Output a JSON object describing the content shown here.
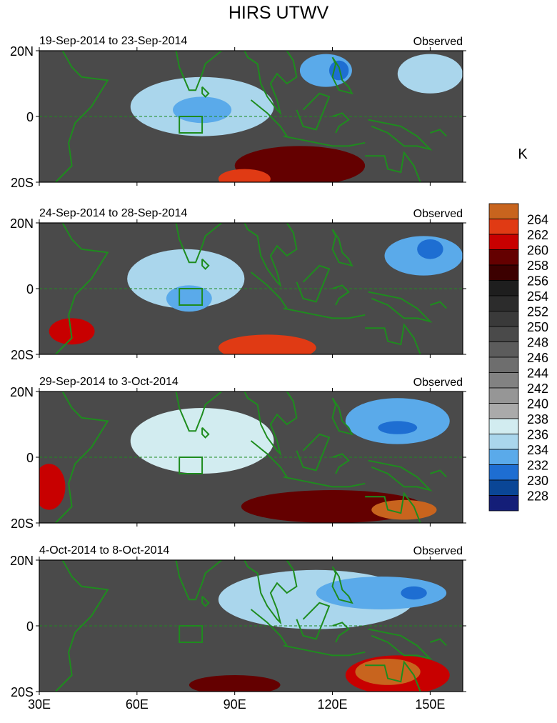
{
  "chart_data": {
    "type": "heatmap",
    "title": "HIRS UTWV",
    "variable_label": "Observed",
    "units": "K",
    "x_ticks": [
      "30E",
      "60E",
      "90E",
      "120E",
      "150E"
    ],
    "x_tick_values": [
      30,
      60,
      90,
      120,
      150
    ],
    "x_range": [
      30,
      160
    ],
    "y_ticks": [
      "20N",
      "0",
      "20S"
    ],
    "y_tick_values": [
      20,
      0,
      -20
    ],
    "y_range": [
      -20,
      20
    ],
    "colorbar_levels": [
      "264",
      "262",
      "260",
      "258",
      "256",
      "254",
      "252",
      "250",
      "248",
      "246",
      "244",
      "242",
      "240",
      "238",
      "236",
      "234",
      "232",
      "230",
      "228"
    ],
    "colorbar_colors": [
      "#c8641e",
      "#e03a14",
      "#c80000",
      "#640000",
      "#3c0000",
      "#1e1e1e",
      "#2c2c2c",
      "#3a3a3a",
      "#4a4a4a",
      "#5c5c5c",
      "#6e6e6e",
      "#828282",
      "#969696",
      "#aaaaaa",
      "#d2ecf0",
      "#aad6ec",
      "#5aaaea",
      "#1e6ed2",
      "#0a4696",
      "#141e78"
    ],
    "box_region": {
      "lon": [
        73,
        80
      ],
      "lat": [
        -5,
        0
      ]
    },
    "panels": [
      {
        "period": "19-Sep-2014 to 23-Sep-2014",
        "label": "Observed",
        "features": [
          {
            "lon": 80,
            "lat": 3,
            "level": 234,
            "rx": 22,
            "ry": 9
          },
          {
            "lon": 80,
            "lat": 2,
            "level": 232,
            "rx": 9,
            "ry": 4
          },
          {
            "lon": 118,
            "lat": 14,
            "level": 232,
            "rx": 8,
            "ry": 5
          },
          {
            "lon": 122,
            "lat": 14,
            "level": 230,
            "rx": 3,
            "ry": 3
          },
          {
            "lon": 150,
            "lat": 13,
            "level": 234,
            "rx": 10,
            "ry": 6
          },
          {
            "lon": 93,
            "lat": -19,
            "level": 262,
            "rx": 8,
            "ry": 3
          },
          {
            "lon": 110,
            "lat": -15,
            "level": 258,
            "rx": 20,
            "ry": 6
          }
        ]
      },
      {
        "period": "24-Sep-2014 to 28-Sep-2014",
        "label": "Observed",
        "features": [
          {
            "lon": 75,
            "lat": 3,
            "level": 234,
            "rx": 18,
            "ry": 9
          },
          {
            "lon": 76,
            "lat": -3,
            "level": 232,
            "rx": 7,
            "ry": 4
          },
          {
            "lon": 148,
            "lat": 10,
            "level": 232,
            "rx": 12,
            "ry": 6
          },
          {
            "lon": 150,
            "lat": 12,
            "level": 230,
            "rx": 4,
            "ry": 3
          },
          {
            "lon": 100,
            "lat": -18,
            "level": 262,
            "rx": 15,
            "ry": 4
          },
          {
            "lon": 40,
            "lat": -13,
            "level": 260,
            "rx": 7,
            "ry": 4
          }
        ]
      },
      {
        "period": "29-Sep-2014 to 3-Oct-2014",
        "label": "Observed",
        "features": [
          {
            "lon": 80,
            "lat": 5,
            "level": 236,
            "rx": 22,
            "ry": 10
          },
          {
            "lon": 140,
            "lat": 11,
            "level": 232,
            "rx": 16,
            "ry": 7
          },
          {
            "lon": 140,
            "lat": 9,
            "level": 230,
            "rx": 6,
            "ry": 2
          },
          {
            "lon": 142,
            "lat": -16,
            "level": 264,
            "rx": 10,
            "ry": 3
          },
          {
            "lon": 120,
            "lat": -15,
            "level": 258,
            "rx": 28,
            "ry": 5
          },
          {
            "lon": 33,
            "lat": -9,
            "level": 260,
            "rx": 5,
            "ry": 7
          }
        ]
      },
      {
        "period": "4-Oct-2014 to 8-Oct-2014",
        "label": "Observed",
        "features": [
          {
            "lon": 115,
            "lat": 8,
            "level": 234,
            "rx": 30,
            "ry": 9
          },
          {
            "lon": 135,
            "lat": 10,
            "level": 232,
            "rx": 20,
            "ry": 5
          },
          {
            "lon": 145,
            "lat": 10,
            "level": 230,
            "rx": 4,
            "ry": 2
          },
          {
            "lon": 137,
            "lat": -14,
            "level": 264,
            "rx": 10,
            "ry": 4
          },
          {
            "lon": 140,
            "lat": -15,
            "level": 260,
            "rx": 16,
            "ry": 6
          },
          {
            "lon": 90,
            "lat": -18,
            "level": 258,
            "rx": 14,
            "ry": 3
          }
        ]
      }
    ]
  }
}
